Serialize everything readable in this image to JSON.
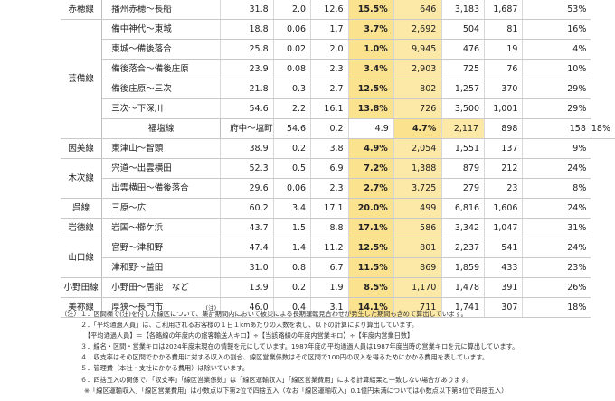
{
  "columns": [
    "line",
    "section",
    "c1",
    "c2",
    "c3",
    "rate",
    "c5",
    "c6",
    "c7",
    "c8"
  ],
  "rows": [
    {
      "line": "赤穂線",
      "span": 1,
      "section": "播州赤穂～長船",
      "note": "",
      "c1": "31.8",
      "c2": "2.0",
      "c3": "12.6",
      "rate": "15.5%",
      "c5": "646",
      "c6": "3,183",
      "c7": "1,687",
      "c8": "53%"
    },
    {
      "line": "芸備線",
      "span": 6,
      "section": "備中神代～東城",
      "note": "",
      "c1": "18.8",
      "c2": "0.06",
      "c3": "1.7",
      "rate": "3.7%",
      "c5": "2,692",
      "c6": "504",
      "c7": "81",
      "c8": "16%"
    },
    {
      "section": "東城～備後落合",
      "note": "",
      "c1": "25.8",
      "c2": "0.02",
      "c3": "2.0",
      "rate": "1.0%",
      "c5": "9,945",
      "c6": "476",
      "c7": "19",
      "c8": "4%"
    },
    {
      "section": "備後落合～備後庄原",
      "note": "",
      "c1": "23.9",
      "c2": "0.08",
      "c3": "2.3",
      "rate": "3.4%",
      "c5": "2,903",
      "c6": "725",
      "c7": "76",
      "c8": "10%"
    },
    {
      "section": "備後庄原～三次",
      "note": "",
      "c1": "21.8",
      "c2": "0.3",
      "c3": "2.7",
      "rate": "12.5%",
      "c5": "802",
      "c6": "1,257",
      "c7": "370",
      "c8": "29%"
    },
    {
      "section": "三次～下深川",
      "note": "",
      "c1": "54.6",
      "c2": "2.2",
      "c3": "16.1",
      "rate": "13.8%",
      "c5": "726",
      "c6": "3,500",
      "c7": "1,001",
      "c8": "29%"
    },
    {
      "line": "福塩線",
      "span": 1,
      "section": "府中～塩町",
      "note": "",
      "c1": "54.6",
      "c2": "0.2",
      "c3": "4.9",
      "rate": "4.7%",
      "c5": "2,117",
      "c6": "898",
      "c7": "158",
      "c8": "18%"
    },
    {
      "line": "因美線",
      "span": 1,
      "section": "東津山～智頭",
      "note": "",
      "c1": "38.9",
      "c2": "0.2",
      "c3": "3.8",
      "rate": "4.9%",
      "c5": "2,054",
      "c6": "1,551",
      "c7": "137",
      "c8": "9%"
    },
    {
      "line": "木次線",
      "span": 2,
      "section": "宍道～出雲横田",
      "note": "",
      "c1": "52.3",
      "c2": "0.5",
      "c3": "6.9",
      "rate": "7.2%",
      "c5": "1,388",
      "c6": "879",
      "c7": "212",
      "c8": "24%"
    },
    {
      "section": "出雲横田～備後落合",
      "note": "",
      "c1": "29.6",
      "c2": "0.06",
      "c3": "2.3",
      "rate": "2.7%",
      "c5": "3,725",
      "c6": "279",
      "c7": "23",
      "c8": "8%"
    },
    {
      "line": "呉線",
      "span": 1,
      "section": "三原～広",
      "note": "",
      "c1": "60.2",
      "c2": "3.4",
      "c3": "17.1",
      "rate": "20.0%",
      "c5": "499",
      "c6": "6,816",
      "c7": "1,606",
      "c8": "24%"
    },
    {
      "line": "岩徳線",
      "span": 1,
      "section": "岩国～櫛ケ浜",
      "note": "",
      "c1": "43.7",
      "c2": "1.5",
      "c3": "8.8",
      "rate": "17.1%",
      "c5": "586",
      "c6": "3,342",
      "c7": "1,047",
      "c8": "31%"
    },
    {
      "line": "山口線",
      "span": 2,
      "section": "宮野～津和野",
      "note": "",
      "c1": "47.4",
      "c2": "1.4",
      "c3": "11.2",
      "rate": "12.5%",
      "c5": "801",
      "c6": "2,237",
      "c7": "541",
      "c8": "24%"
    },
    {
      "section": "津和野～益田",
      "note": "",
      "c1": "31.0",
      "c2": "0.8",
      "c3": "6.7",
      "rate": "11.5%",
      "c5": "869",
      "c6": "1,859",
      "c7": "433",
      "c8": "23%"
    },
    {
      "line": "小野田線",
      "span": 1,
      "section": "小野田～居能　など",
      "note": "",
      "c1": "13.9",
      "c2": "0.2",
      "c3": "1.9",
      "rate": "8.5%",
      "c5": "1,170",
      "c6": "1,478",
      "c7": "391",
      "c8": "26%"
    },
    {
      "line": "美祢線",
      "span": 1,
      "section": "厚狭～長門市",
      "note": "(注)",
      "c1": "46.0",
      "c2": "0.4",
      "c3": "3.1",
      "rate": "14.1%",
      "c5": "711",
      "c6": "1,741",
      "c7": "307",
      "c8": "18%"
    }
  ],
  "notes": [
    {
      "label": "（注）",
      "text": "１．区間欄で(注)を付した線区について、集計期間内において被災による長期運転見合わせが発生した期間も含めて算出しています。"
    },
    {
      "label": "",
      "text": "２．「平均通過人員」は、ご利用されるお客様の１日１kmあたりの人数を表し、以下の計算により算出しています。"
    },
    {
      "label": "",
      "text": "【平均通過人員】＝【各路線の年度内の旅客輸送人キロ】÷【当該路線の年度内営業キロ】÷【年度内営業日数】",
      "indent": true
    },
    {
      "label": "",
      "text": "３．線名・区間・営業キロは2024年度末現在の情報を元にしています。1987年度の平均通過人員は1987年度当時の営業キロを元に算出しています。"
    },
    {
      "label": "",
      "text": "４．収支率はその区間でかかる費用に対する収入の割合、線区営業係数はその区間で100円の収入を得るためにかかる費用を表しています。"
    },
    {
      "label": "",
      "text": "５．管理費（本社・支社にかかる費用）は除いています。"
    },
    {
      "label": "",
      "text": "６．四捨五入の関係で、「収支率」「線区営業係数」は「線区運輸収入」「線区営業費用」による計算結果と一致しない場合があります。"
    },
    {
      "label": "",
      "text": "※「線区運輸収入」「線区営業費用」は小数点以下第2位で四捨五入（なお「線区運輸収入」0.1億円未満については小数点以下第3位で四捨五入）",
      "indent": true
    }
  ]
}
